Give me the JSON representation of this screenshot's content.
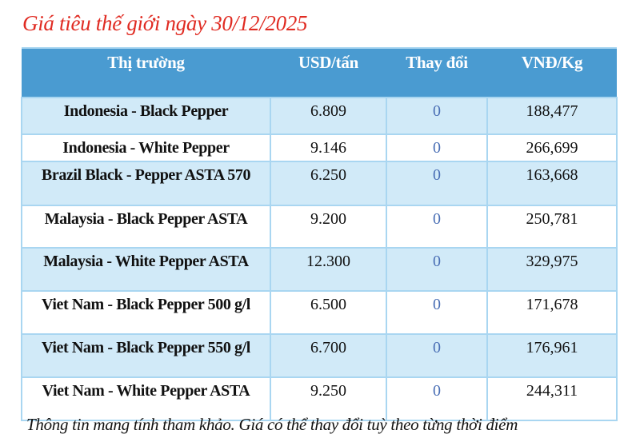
{
  "title": "Giá tiêu thế giới ngày 30/12/2025",
  "table": {
    "headers": [
      "Thị trường",
      "USD/tấn",
      "Thay đổi",
      "VNĐ/Kg"
    ],
    "rows": [
      {
        "market": "Indonesia - Black Pepper",
        "usd": "6.809",
        "change": "0",
        "vnd": "188,477"
      },
      {
        "market": "Indonesia - White Pepper",
        "usd": "9.146",
        "change": "0",
        "vnd": "266,699"
      },
      {
        "market": "Brazil Black - Pepper ASTA 570",
        "usd": "6.250",
        "change": "0",
        "vnd": "163,668"
      },
      {
        "market": "Malaysia - Black Pepper ASTA",
        "usd": "9.200",
        "change": "0",
        "vnd": "250,781"
      },
      {
        "market": "Malaysia - White Pepper ASTA",
        "usd": "12.300",
        "change": "0",
        "vnd": "329,975"
      },
      {
        "market": "Viet Nam - Black Pepper 500 g/l",
        "usd": "6.500",
        "change": "0",
        "vnd": "171,678"
      },
      {
        "market": "Viet Nam - Black Pepper 550 g/l",
        "usd": "6.700",
        "change": "0",
        "vnd": "176,961"
      },
      {
        "market": "Viet Nam - White Pepper ASTA",
        "usd": "9.250",
        "change": "0",
        "vnd": "244,311"
      }
    ]
  },
  "note": "Thông tin mang tính tham khảo. Giá có thể thay đổi tuỳ theo từng thời điểm",
  "colors": {
    "title": "#e02b22",
    "header_bg": "#4a9bd1",
    "alt_row_bg": "#d1eaf8",
    "change_text": "#4a6fb5"
  }
}
